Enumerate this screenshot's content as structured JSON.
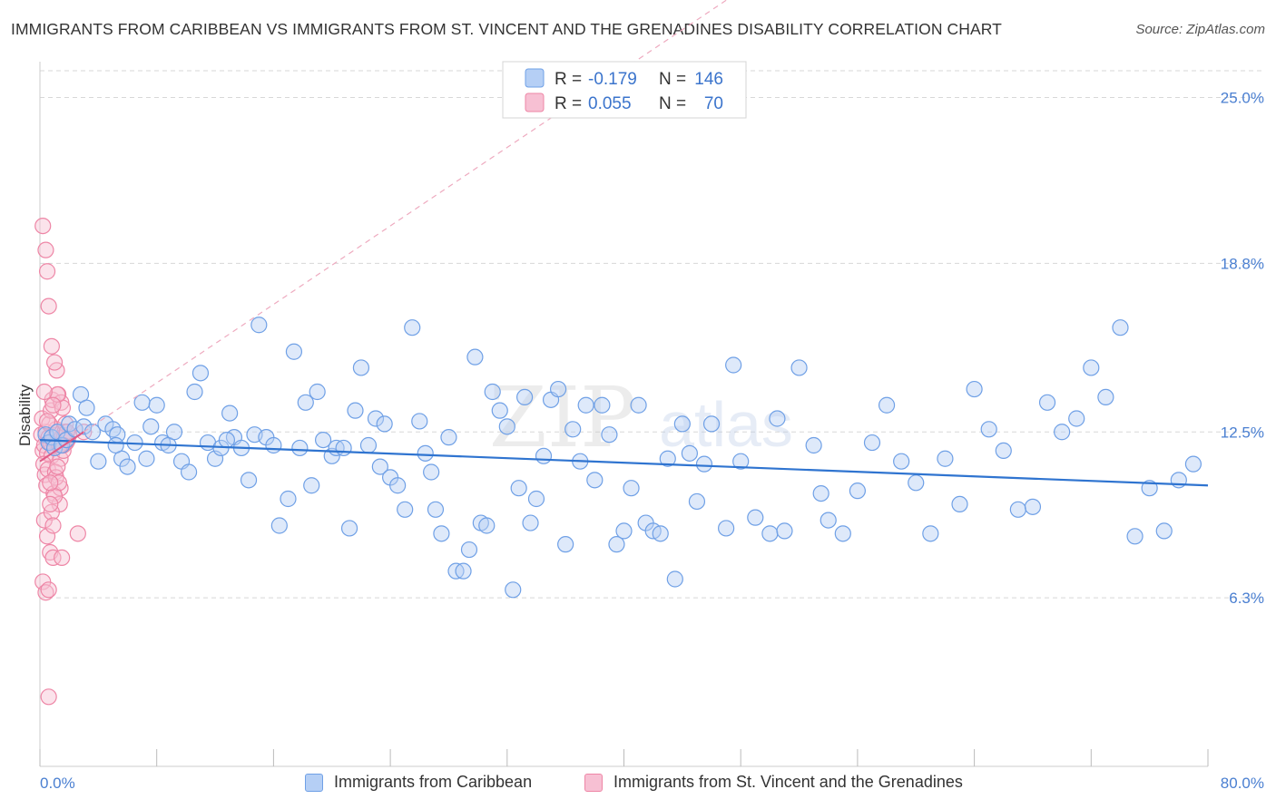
{
  "title": "IMMIGRANTS FROM CARIBBEAN VS IMMIGRANTS FROM ST. VINCENT AND THE GRENADINES DISABILITY CORRELATION CHART",
  "source": "Source: ZipAtlas.com",
  "watermark": {
    "zip": "ZIP",
    "atlas": "atlas"
  },
  "colors": {
    "blue": "#6fa0e6",
    "blue_fill": "#b5cff5",
    "blue_line": "#2f74d0",
    "pink": "#ee86a6",
    "pink_fill": "#f7c0d3",
    "pink_line": "#e05a86",
    "axis_text": "#4a7fd1",
    "grid": "#d7d7d7"
  },
  "legend_top": {
    "rows": [
      {
        "r_label": "R = ",
        "r_value": "-0.179",
        "n_label": "N = ",
        "n_value": "146",
        "color": "#6fa0e6"
      },
      {
        "r_label": "R = ",
        "r_value": "0.055",
        "n_label": "N = ",
        "n_value": "70",
        "color": "#ee86a6"
      }
    ]
  },
  "legend_bottom": [
    {
      "label": "Immigrants from Caribbean",
      "color": "#6fa0e6"
    },
    {
      "label": "Immigrants from St. Vincent and the Grenadines",
      "color": "#ee86a6"
    }
  ],
  "chart_data": {
    "type": "scatter",
    "title": "IMMIGRANTS FROM CARIBBEAN VS IMMIGRANTS FROM ST. VINCENT AND THE GRENADINES DISABILITY CORRELATION CHART",
    "xlabel": "",
    "ylabel": "Disability",
    "xlim": [
      0,
      80
    ],
    "ylim": [
      0,
      26
    ],
    "x_tick_labels": [
      "0.0%",
      "80.0%"
    ],
    "y_ticks": [
      6.3,
      12.5,
      18.8,
      25.0
    ],
    "y_tick_labels": [
      "6.3%",
      "12.5%",
      "18.8%",
      "25.0%"
    ],
    "grid": true,
    "legend_position": "top-center",
    "series": [
      {
        "name": "Immigrants from Caribbean",
        "color": "#6fa0e6",
        "trend": {
          "x": [
            0,
            80
          ],
          "y": [
            12.2,
            10.5
          ]
        },
        "x": [
          0.4,
          0.6,
          0.8,
          1.0,
          1.2,
          1.5,
          1.8,
          2.0,
          2.4,
          2.8,
          3.0,
          3.2,
          3.6,
          4.0,
          4.5,
          5.0,
          5.3,
          5.6,
          6.0,
          6.5,
          7.0,
          7.3,
          7.6,
          8.0,
          8.4,
          8.8,
          9.2,
          9.7,
          10.2,
          10.6,
          11.0,
          11.5,
          12.0,
          12.4,
          13.0,
          13.3,
          13.8,
          14.3,
          14.7,
          15.0,
          15.5,
          16.0,
          16.4,
          17.0,
          17.4,
          17.8,
          18.2,
          18.6,
          19.0,
          19.4,
          20.0,
          20.3,
          20.8,
          21.2,
          21.6,
          22.0,
          22.5,
          23.0,
          23.3,
          23.6,
          24.0,
          24.5,
          25.0,
          25.5,
          26.0,
          26.4,
          26.8,
          27.1,
          27.5,
          28.0,
          28.5,
          29.0,
          29.4,
          29.8,
          30.2,
          30.6,
          31.0,
          31.5,
          32.0,
          32.4,
          32.8,
          33.2,
          33.6,
          34.0,
          34.5,
          35.0,
          35.5,
          36.0,
          36.5,
          37.0,
          37.4,
          38.0,
          38.5,
          39.0,
          39.5,
          40.0,
          40.5,
          41.0,
          41.5,
          42.0,
          42.5,
          43.0,
          43.5,
          44.0,
          44.5,
          45.0,
          45.5,
          46.0,
          47.0,
          47.5,
          48.0,
          49.0,
          50.0,
          50.5,
          51.0,
          52.0,
          53.0,
          53.5,
          54.0,
          55.0,
          56.0,
          57.0,
          58.0,
          59.0,
          60.0,
          61.0,
          62.0,
          63.0,
          64.0,
          65.0,
          66.0,
          67.0,
          68.0,
          69.0,
          70.0,
          71.0,
          72.0,
          73.0,
          74.0,
          75.0,
          76.0,
          77.0,
          78.0,
          79.0,
          5.2,
          12.8
        ],
        "y": [
          12.4,
          12.1,
          12.3,
          11.9,
          12.5,
          12.0,
          12.2,
          12.8,
          12.6,
          13.9,
          12.7,
          13.4,
          12.5,
          11.4,
          12.8,
          12.6,
          12.4,
          11.5,
          11.2,
          12.1,
          13.6,
          11.5,
          12.7,
          13.5,
          12.1,
          12.0,
          12.5,
          11.4,
          11.0,
          14.0,
          14.7,
          12.1,
          11.5,
          11.9,
          13.2,
          12.3,
          11.9,
          10.7,
          12.4,
          16.5,
          12.3,
          12.0,
          9.0,
          10.0,
          15.5,
          11.9,
          13.6,
          10.5,
          14.0,
          12.2,
          11.6,
          11.9,
          11.9,
          8.9,
          13.3,
          14.9,
          12.0,
          13.0,
          11.2,
          12.8,
          10.8,
          10.5,
          9.6,
          16.4,
          12.9,
          11.7,
          11.0,
          9.6,
          8.7,
          12.3,
          7.3,
          7.3,
          8.1,
          15.3,
          9.1,
          9.0,
          14.0,
          13.3,
          12.7,
          6.6,
          10.4,
          13.8,
          9.1,
          10.0,
          11.6,
          13.7,
          14.1,
          8.3,
          12.6,
          11.4,
          13.5,
          10.7,
          13.5,
          12.4,
          8.3,
          8.8,
          10.4,
          13.5,
          9.1,
          8.8,
          8.7,
          11.5,
          7.0,
          12.8,
          11.7,
          9.9,
          11.3,
          12.8,
          8.9,
          15.0,
          11.4,
          9.3,
          8.7,
          13.0,
          8.8,
          14.9,
          12.0,
          10.2,
          9.2,
          8.7,
          10.3,
          12.1,
          13.5,
          11.4,
          10.6,
          8.7,
          11.5,
          9.8,
          14.1,
          12.6,
          11.8,
          9.6,
          9.7,
          13.6,
          12.5,
          13.0,
          14.9,
          13.8,
          16.4,
          8.6,
          10.4,
          8.8,
          10.7,
          11.3,
          12.0,
          12.2
        ]
      },
      {
        "name": "Immigrants from St. Vincent and the Grenadines",
        "color": "#ee86a6",
        "trend": {
          "x": [
            0,
            3.0
          ],
          "y": [
            11.4,
            12.5
          ]
        },
        "x": [
          0.1,
          0.2,
          0.3,
          0.4,
          0.5,
          0.6,
          0.7,
          0.8,
          0.9,
          1.0,
          1.1,
          1.2,
          1.3,
          1.4,
          1.5,
          1.6,
          1.7,
          1.8,
          1.9,
          2.0,
          0.15,
          0.25,
          0.35,
          0.45,
          0.55,
          0.65,
          0.75,
          0.85,
          0.95,
          1.05,
          1.15,
          1.25,
          1.35,
          1.45,
          1.55,
          1.65,
          1.75,
          1.85,
          0.2,
          0.4,
          0.6,
          0.8,
          1.0,
          1.2,
          1.4,
          1.6,
          0.3,
          0.5,
          0.7,
          0.9,
          1.1,
          1.3,
          1.5,
          0.2,
          0.4,
          0.6,
          0.8,
          1.0,
          1.2,
          1.4,
          0.3,
          0.5,
          0.7,
          0.9,
          0.5,
          0.7,
          0.9,
          2.6,
          0.6,
          3.0
        ],
        "y": [
          12.4,
          11.8,
          12.0,
          12.5,
          11.7,
          12.3,
          12.1,
          11.6,
          12.2,
          11.9,
          12.6,
          12.4,
          12.0,
          11.5,
          12.3,
          11.8,
          12.5,
          12.1,
          12.2,
          12.4,
          13.0,
          11.3,
          10.9,
          10.5,
          11.1,
          12.8,
          13.3,
          13.7,
          10.2,
          11.0,
          14.8,
          13.9,
          9.8,
          13.6,
          13.4,
          12.3,
          12.8,
          12.5,
          20.2,
          19.3,
          17.2,
          15.7,
          15.1,
          13.9,
          10.4,
          12.0,
          9.2,
          8.6,
          8.0,
          7.8,
          10.8,
          10.6,
          7.8,
          6.9,
          6.5,
          6.6,
          9.5,
          10.1,
          11.2,
          12.0,
          14.0,
          12.9,
          10.6,
          9.0,
          18.5,
          9.8,
          13.5,
          8.7,
          2.6,
          12.5
        ]
      }
    ]
  }
}
